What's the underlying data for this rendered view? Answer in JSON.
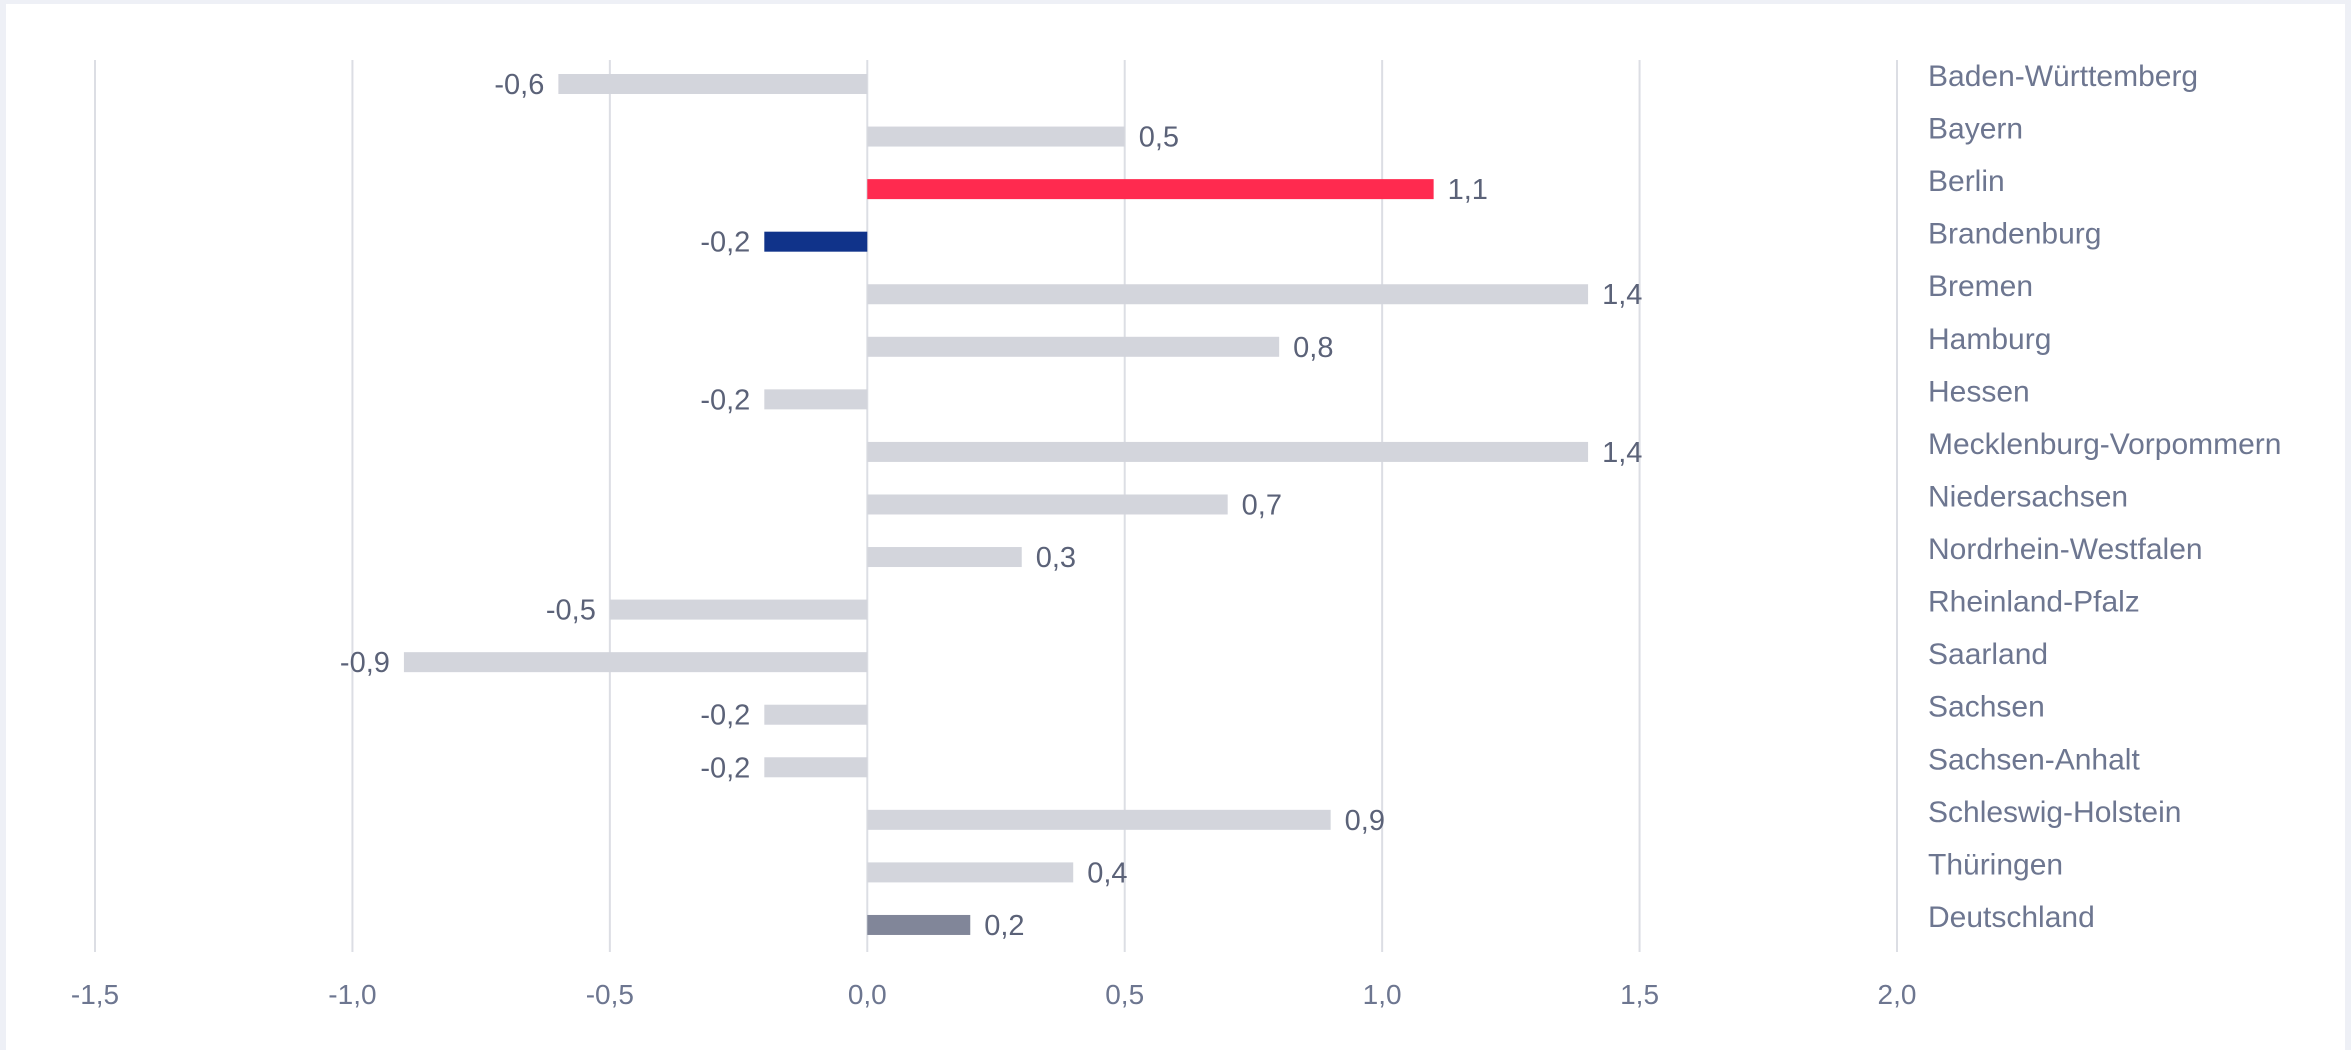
{
  "chart_data": {
    "type": "bar",
    "orientation": "horizontal",
    "title": "",
    "xlabel": "",
    "ylabel": "",
    "xlim": [
      -1.5,
      2.0
    ],
    "x_ticks": [
      -1.5,
      -1.0,
      -0.5,
      0.0,
      0.5,
      1.0,
      1.5,
      2.0
    ],
    "x_tick_labels": [
      "-1,5",
      "-1,0",
      "-0,5",
      "0,0",
      "0,5",
      "1,0",
      "1,5",
      "2,0"
    ],
    "grid": "vertical",
    "legend": "none",
    "category_label_position": "right",
    "categories": [
      "Baden-Württemberg",
      "Bayern",
      "Berlin",
      "Brandenburg",
      "Bremen",
      "Hamburg",
      "Hessen",
      "Mecklenburg-Vorpommern",
      "Niedersachsen",
      "Nordrhein-Westfalen",
      "Rheinland-Pfalz",
      "Saarland",
      "Sachsen",
      "Sachsen-Anhalt",
      "Schleswig-Holstein",
      "Thüringen",
      "Deutschland"
    ],
    "values": [
      -0.6,
      0.5,
      1.1,
      -0.2,
      1.4,
      0.8,
      -0.2,
      1.4,
      0.7,
      0.3,
      -0.5,
      -0.9,
      -0.2,
      -0.2,
      0.9,
      0.4,
      0.2
    ],
    "value_labels": [
      "-0,6",
      "0,5",
      "1,1",
      "-0,2",
      "1,4",
      "0,8",
      "-0,2",
      "1,4",
      "0,7",
      "0,3",
      "-0,5",
      "-0,9",
      "-0,2",
      "-0,2",
      "0,9",
      "0,4",
      "0,2"
    ],
    "colors": {
      "default": "#d3d5dc",
      "Berlin": "#ff2a4f",
      "Brandenburg": "#10338a",
      "Deutschland": "#818699"
    }
  }
}
